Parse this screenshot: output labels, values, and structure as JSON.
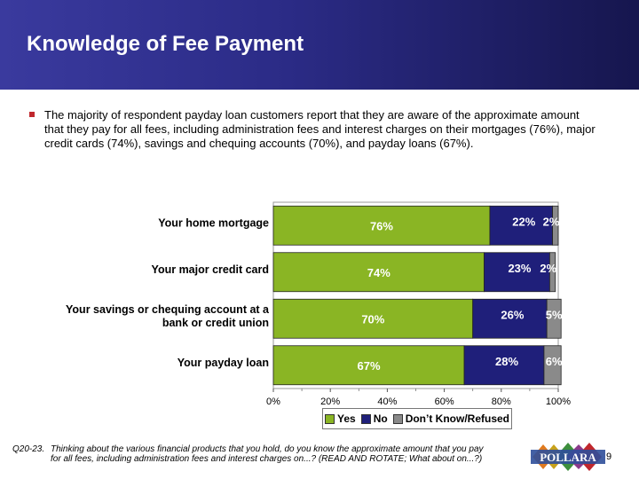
{
  "header": {
    "title": "Knowledge of Fee Payment"
  },
  "bullet": {
    "text": "The majority of respondent payday loan customers report that they are aware of the approximate amount that they pay for all fees, including administration fees and interest charges on their mortgages (76%), major credit cards (74%), savings and chequing accounts (70%), and payday loans (67%)."
  },
  "chart_data": {
    "type": "bar",
    "orientation": "horizontal",
    "stacked": true,
    "categories": [
      [
        "Your home mortgage"
      ],
      [
        "Your major credit card"
      ],
      [
        "Your savings or chequing account at a",
        "bank or credit union"
      ],
      [
        "Your payday loan"
      ]
    ],
    "series": [
      {
        "name": "Yes",
        "values": [
          76,
          74,
          70,
          67
        ],
        "labels": [
          "76%",
          "74%",
          "70%",
          "67%"
        ],
        "color": "#8ab524"
      },
      {
        "name": "No",
        "values": [
          22,
          23,
          26,
          28
        ],
        "labels": [
          "22%",
          "23%",
          "26%",
          "28%"
        ],
        "color": "#1f1f7a"
      },
      {
        "name": "Don't Know/Refused",
        "values": [
          2,
          2,
          5,
          6
        ],
        "labels": [
          "2%",
          "2%",
          "5%",
          "6%"
        ],
        "color": "#8a8a8a"
      }
    ],
    "xlim": [
      0,
      100
    ],
    "xticks": [
      "0%",
      "20%",
      "40%",
      "60%",
      "80%",
      "100%"
    ],
    "legend": "bottom",
    "grid": false
  },
  "legend": {
    "yes": "Yes",
    "no": "No",
    "dk": "Don’t Know/Refused"
  },
  "footnote": {
    "code": "Q20-23.",
    "text": "Thinking about the various financial products that you hold, do you know the approximate amount that you pay for all fees, including administration fees and interest charges on...? (READ AND ROTATE; What about on...?)"
  },
  "logo": {
    "text": "POLLARA"
  },
  "page": {
    "number": "9"
  },
  "colors": {
    "header_dark": "#16164e",
    "header_light": "#3a3a9e",
    "bullet": "#c0272d"
  }
}
